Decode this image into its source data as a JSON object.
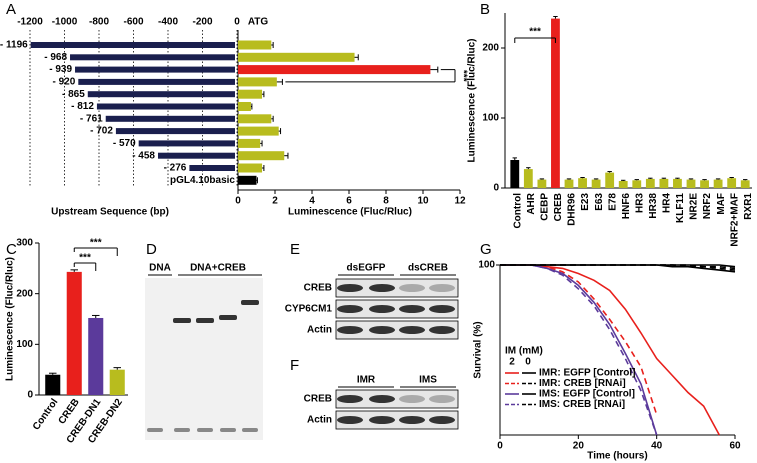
{
  "chart_data": [
    {
      "type": "promoter_deletion",
      "panel": "A",
      "marker": "ATG",
      "left_label": "Upstream Sequence (bp)",
      "xlabel": "Luminescence (Fluc/Rluc)",
      "categories": [
        "- 1196",
        "- 968",
        "- 939",
        "- 920",
        "- 865",
        "- 812",
        "- 761",
        "- 702",
        "- 570",
        "- 458",
        "- 276",
        "pGL4.10basic"
      ],
      "lengths": [
        -1196,
        -968,
        -939,
        -920,
        -865,
        -812,
        -761,
        -702,
        -570,
        -458,
        -276,
        null
      ],
      "values": [
        1.8,
        6.3,
        10.4,
        2.1,
        1.3,
        0.7,
        1.8,
        2.2,
        1.2,
        2.5,
        1.3,
        1.0
      ],
      "errors": [
        0.1,
        0.2,
        0.4,
        0.3,
        0.1,
        0.05,
        0.1,
        0.1,
        0.1,
        0.2,
        0.1,
        0.05
      ],
      "colors": [
        "#b8bc1e",
        "#b8bc1e",
        "#e8201c",
        "#b8bc1e",
        "#b8bc1e",
        "#b8bc1e",
        "#b8bc1e",
        "#b8bc1e",
        "#b8bc1e",
        "#b8bc1e",
        "#b8bc1e",
        "#000000"
      ],
      "length_color": "#1a1f4e",
      "left_lim": [
        -1200,
        0
      ],
      "left_ticks": [
        -1200,
        -1000,
        -800,
        -600,
        -400,
        -200,
        0
      ],
      "xlim": [
        0,
        12
      ],
      "xticks": [
        0,
        2,
        4,
        6,
        8,
        10,
        12
      ],
      "significance": "***"
    },
    {
      "type": "bar",
      "panel": "B",
      "ylabel": "Luminescence (Fluc/Rluc)",
      "categories": [
        "Control",
        "AHR",
        "CEBP",
        "CREB",
        "DHR96",
        "E23",
        "E63",
        "E78",
        "HNF6",
        "HR3",
        "HR38",
        "HR4",
        "KLF11",
        "NR2E",
        "NRF2",
        "MAF",
        "NRF2+MAF",
        "RXR1"
      ],
      "values": [
        40,
        27,
        12,
        242,
        12,
        14,
        12,
        22,
        10,
        11,
        13,
        13,
        13,
        12,
        11,
        12,
        14,
        11
      ],
      "errors": [
        3,
        2,
        1,
        3,
        1,
        1,
        1,
        1.5,
        1,
        1,
        1,
        1,
        1,
        1,
        1,
        1,
        1,
        1
      ],
      "colors": [
        "#000000",
        "#b8bc1e",
        "#b8bc1e",
        "#e8201c",
        "#b8bc1e",
        "#b8bc1e",
        "#b8bc1e",
        "#b8bc1e",
        "#b8bc1e",
        "#b8bc1e",
        "#b8bc1e",
        "#b8bc1e",
        "#b8bc1e",
        "#b8bc1e",
        "#b8bc1e",
        "#b8bc1e",
        "#b8bc1e",
        "#b8bc1e"
      ],
      "ylim": [
        0,
        250
      ],
      "yticks": [
        0,
        100,
        200
      ],
      "significance": "***"
    },
    {
      "type": "bar",
      "panel": "C",
      "ylabel": "Luminescence (Fluc/Rluc)",
      "categories": [
        "Control",
        "CREB",
        "CREB-DN1",
        "CREB-DN2"
      ],
      "values": [
        40,
        243,
        152,
        50
      ],
      "errors": [
        3,
        4,
        5,
        4
      ],
      "colors": [
        "#000000",
        "#e8201c",
        "#5b3a9b",
        "#b8bc1e"
      ],
      "ylim": [
        0,
        300
      ],
      "yticks": [
        0,
        100,
        200,
        300
      ],
      "significance": [
        "***",
        "***"
      ]
    },
    {
      "type": "line",
      "panel": "G",
      "xlabel": "Time (hours)",
      "ylabel": "Survival (%)",
      "legend_title": "IM (mM)",
      "legend_columns": [
        "2",
        "0"
      ],
      "x": [
        0,
        4,
        8,
        12,
        16,
        20,
        24,
        28,
        32,
        36,
        40,
        44,
        48,
        52,
        56,
        60
      ],
      "series": [
        {
          "name": "IMR: EGFP [Control]",
          "color": "#e8201c",
          "dashed": false,
          "values": [
            100,
            100,
            100,
            99,
            98,
            95,
            91,
            85,
            74,
            60,
            45,
            35,
            25,
            17,
            0,
            null
          ]
        },
        {
          "name": "IMR: CREB [RNAi]",
          "color": "#e8201c",
          "dashed": true,
          "values": [
            100,
            100,
            100,
            99,
            96,
            90,
            80,
            68,
            55,
            40,
            12,
            null,
            null,
            null,
            null,
            null
          ]
        },
        {
          "name": "IMS: EGFP [Control]",
          "color": "#5b3a9b",
          "dashed": false,
          "values": [
            100,
            100,
            100,
            98,
            95,
            88,
            78,
            65,
            48,
            30,
            0,
            null,
            null,
            null,
            null,
            null
          ]
        },
        {
          "name": "IMS: CREB [RNAi]",
          "color": "#5b3a9b",
          "dashed": true,
          "values": [
            100,
            100,
            100,
            98,
            94,
            86,
            76,
            62,
            45,
            26,
            0,
            null,
            null,
            null,
            null,
            null
          ]
        },
        {
          "color": "#000000",
          "dashed": false,
          "values": [
            100,
            100,
            100,
            100,
            100,
            100,
            100,
            100,
            100,
            100,
            100,
            99,
            99,
            98,
            97,
            96
          ]
        },
        {
          "color": "#000000",
          "dashed": true,
          "values": [
            100,
            100,
            100,
            100,
            100,
            100,
            100,
            100,
            100,
            100,
            100,
            100,
            99,
            99,
            98,
            97
          ]
        },
        {
          "color": "#000000",
          "dashed": false,
          "values": [
            100,
            100,
            100,
            100,
            100,
            100,
            100,
            100,
            100,
            100,
            100,
            100,
            100,
            100,
            100,
            99
          ]
        },
        {
          "color": "#000000",
          "dashed": true,
          "values": [
            100,
            100,
            100,
            100,
            100,
            100,
            100,
            100,
            100,
            100,
            100,
            100,
            100,
            99,
            99,
            98
          ]
        }
      ],
      "xlim": [
        0,
        60
      ],
      "xticks": [
        0,
        20,
        40,
        60
      ],
      "ylim": [
        0,
        100
      ],
      "yticks": [
        100
      ]
    }
  ],
  "gel": {
    "panel": "D",
    "groups": [
      "DNA",
      "DNA+CREB"
    ]
  },
  "western_e": {
    "panel": "E",
    "groups": [
      "dsEGFP",
      "dsCREB"
    ],
    "rows": [
      "CREB",
      "CYP6CM1",
      "Actin"
    ]
  },
  "western_f": {
    "panel": "F",
    "groups": [
      "IMR",
      "IMS"
    ],
    "rows": [
      "CREB",
      "Actin"
    ]
  }
}
